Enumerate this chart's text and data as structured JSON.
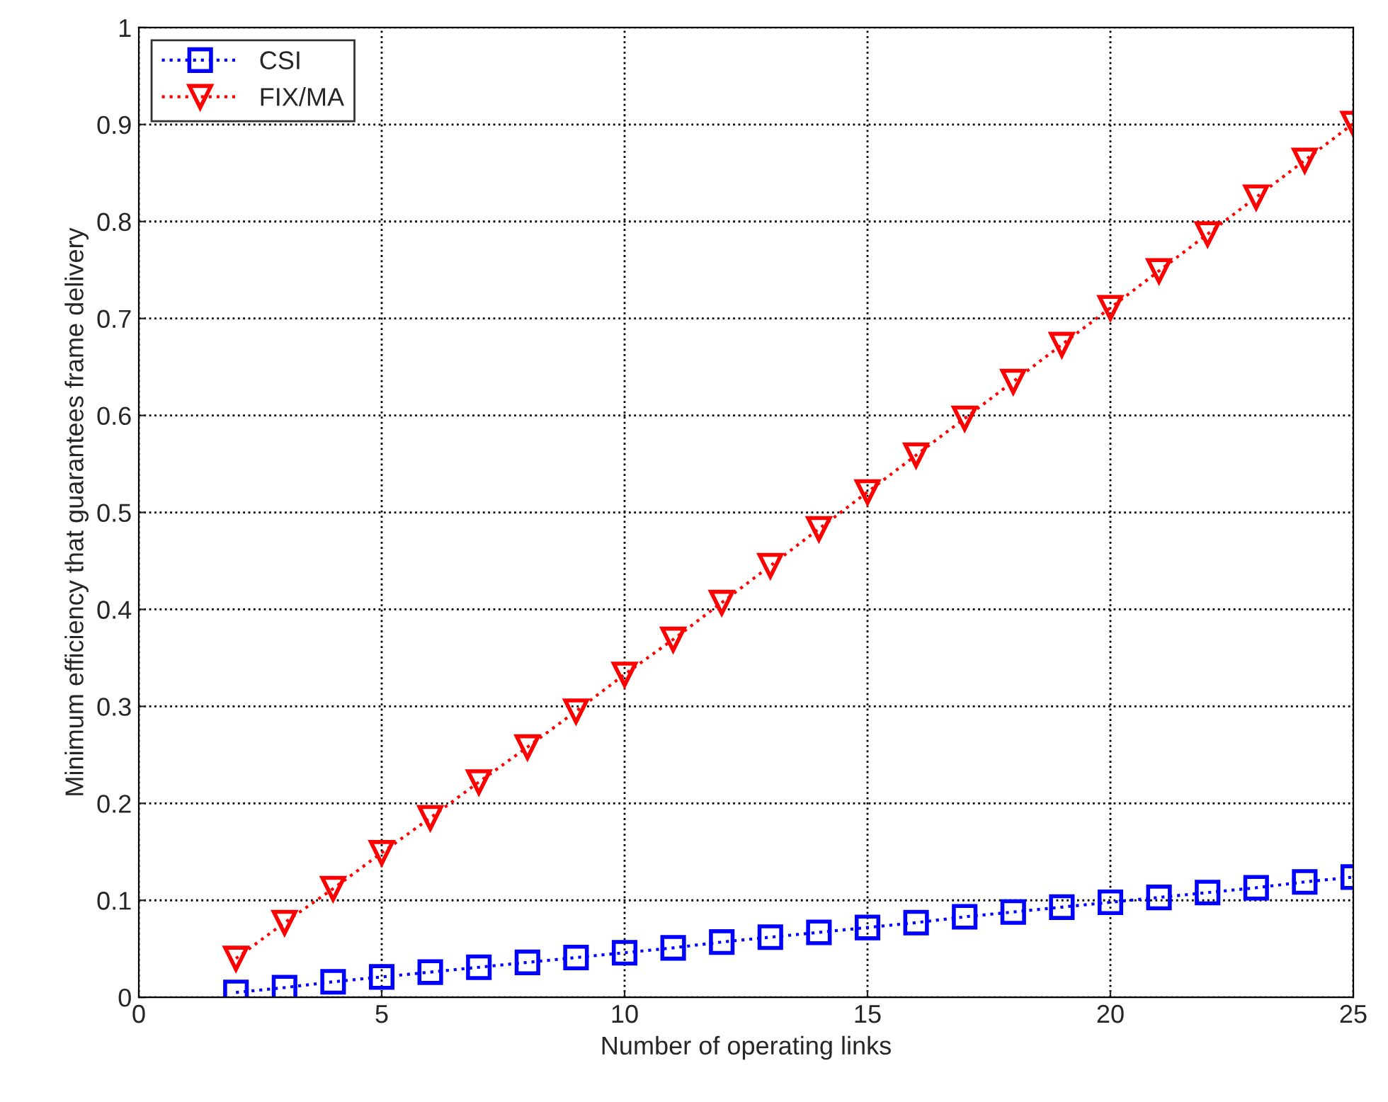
{
  "chart_data": {
    "type": "line",
    "xlabel": "Number of operating links",
    "ylabel": "Minimum efficiency that guarantees frame delivery",
    "x": [
      2,
      3,
      4,
      5,
      6,
      7,
      8,
      9,
      10,
      11,
      12,
      13,
      14,
      15,
      16,
      17,
      18,
      19,
      20,
      21,
      22,
      23,
      24,
      25
    ],
    "series": [
      {
        "name": "CSI",
        "color": "#0000ff",
        "marker": "square",
        "values": [
          0.005,
          0.01,
          0.016,
          0.021,
          0.026,
          0.031,
          0.036,
          0.041,
          0.046,
          0.051,
          0.057,
          0.062,
          0.067,
          0.072,
          0.077,
          0.083,
          0.088,
          0.093,
          0.098,
          0.103,
          0.108,
          0.113,
          0.119,
          0.124
        ]
      },
      {
        "name": "FIX/MA",
        "color": "#ff0000",
        "marker": "triangle",
        "values": [
          0.04,
          0.077,
          0.112,
          0.149,
          0.185,
          0.222,
          0.258,
          0.295,
          0.333,
          0.369,
          0.407,
          0.445,
          0.483,
          0.521,
          0.559,
          0.597,
          0.635,
          0.673,
          0.711,
          0.749,
          0.787,
          0.825,
          0.863,
          0.901
        ]
      }
    ],
    "xlim": [
      0,
      25
    ],
    "xticks": [
      0,
      5,
      10,
      15,
      20,
      25
    ],
    "ylim": [
      0,
      1
    ],
    "yticks": [
      0,
      0.1,
      0.2,
      0.3,
      0.4,
      0.5,
      0.6,
      0.7,
      0.8,
      0.9,
      1
    ],
    "grid": true,
    "legend": "top left",
    "line_style": "dotted"
  }
}
